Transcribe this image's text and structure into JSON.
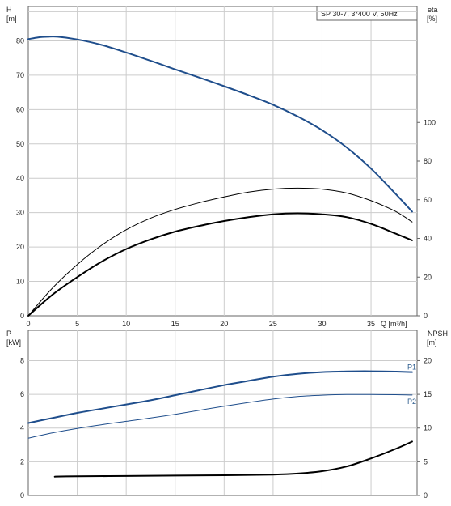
{
  "chart_data": [
    {
      "type": "line",
      "legend": "SP 30-7, 3*400 V, 50Hz",
      "xlabel": "Q [m³/h]",
      "x_ticks": [
        "0",
        "5",
        "10",
        "15",
        "20",
        "25",
        "30",
        "35"
      ],
      "ylabel_left_name": "H",
      "ylabel_left_unit": "[m]",
      "y_left_ticks": [
        "0",
        "10",
        "20",
        "30",
        "40",
        "50",
        "60",
        "70",
        "80"
      ],
      "ylabel_right_name": "eta",
      "ylabel_right_unit": "[%]",
      "y_right_ticks": [
        "0",
        "20",
        "40",
        "60",
        "80",
        "100"
      ],
      "xlim": [
        0,
        39.7
      ],
      "ylim_left": [
        0,
        90
      ],
      "ylim_right": [
        0,
        160
      ],
      "grid": true,
      "colors": {
        "head": "#1f4e8c",
        "efficiency": "#000000",
        "grid": "#cccccc"
      },
      "series": [
        {
          "axis": "left",
          "color": "#1f4e8c",
          "width": 2,
          "x": [
            0,
            1,
            2,
            3,
            5,
            7.5,
            10,
            12.5,
            15,
            17.5,
            20,
            22.5,
            25,
            27.5,
            30,
            32.5,
            35,
            37.5,
            39.2
          ],
          "y": [
            80.5,
            81,
            81.2,
            81.2,
            80.4,
            78.8,
            76.6,
            74.2,
            71.7,
            69.3,
            66.8,
            64.2,
            61.4,
            58.0,
            54.0,
            49.0,
            42.8,
            35.5,
            30.3
          ]
        },
        {
          "axis": "right",
          "color": "#000000",
          "width": 1,
          "x": [
            0,
            2.5,
            5,
            7.5,
            10,
            12.5,
            15,
            17.5,
            20,
            22.5,
            25,
            27.5,
            30,
            32.5,
            35,
            37.5,
            39.2
          ],
          "y": [
            0,
            14.5,
            26.5,
            36.5,
            44.5,
            50.5,
            55.0,
            58.5,
            61.5,
            64.0,
            65.5,
            66.0,
            65.5,
            63.5,
            59.5,
            54.0,
            48.5
          ]
        },
        {
          "axis": "right",
          "color": "#000000",
          "width": 2,
          "x": [
            0,
            2.5,
            5,
            7.5,
            10,
            12.5,
            15,
            17.5,
            20,
            22.5,
            25,
            27.5,
            30,
            32.5,
            35,
            37.5,
            39.2
          ],
          "y": [
            0,
            11.0,
            20.0,
            28.0,
            34.5,
            39.5,
            43.5,
            46.5,
            49.0,
            51.0,
            52.5,
            53.0,
            52.5,
            51.0,
            47.5,
            42.5,
            39.0
          ]
        }
      ]
    },
    {
      "type": "line",
      "ylabel_left_name": "P",
      "ylabel_left_unit": "[kW]",
      "y_left_ticks": [
        "0",
        "2",
        "4",
        "6",
        "8"
      ],
      "ylabel_right_name": "NPSH",
      "ylabel_right_unit": "[m]",
      "y_right_ticks": [
        "0",
        "5",
        "10",
        "15",
        "20"
      ],
      "xlim": [
        0,
        39.7
      ],
      "ylim_left": [
        0,
        9.8
      ],
      "ylim_right": [
        0,
        24.5
      ],
      "grid": true,
      "colors": {
        "p1": "#1f4e8c",
        "p2": "#1f4e8c",
        "npsh": "#000000"
      },
      "series": [
        {
          "name": "P1",
          "axis": "left",
          "color": "#1f4e8c",
          "width": 2,
          "x": [
            0,
            2.5,
            5,
            7.5,
            10,
            12.5,
            15,
            17.5,
            20,
            22.5,
            25,
            27.5,
            30,
            32.5,
            35,
            37.5,
            39.2
          ],
          "y": [
            4.3,
            4.6,
            4.9,
            5.15,
            5.4,
            5.65,
            5.95,
            6.25,
            6.55,
            6.8,
            7.05,
            7.22,
            7.32,
            7.36,
            7.37,
            7.35,
            7.32
          ]
        },
        {
          "name": "P2",
          "axis": "left",
          "color": "#1f4e8c",
          "width": 1,
          "x": [
            0,
            2.5,
            5,
            7.5,
            10,
            12.5,
            15,
            17.5,
            20,
            22.5,
            25,
            27.5,
            30,
            32.5,
            35,
            37.5,
            39.2
          ],
          "y": [
            3.4,
            3.72,
            3.98,
            4.2,
            4.4,
            4.6,
            4.82,
            5.06,
            5.3,
            5.52,
            5.72,
            5.87,
            5.95,
            5.99,
            5.99,
            5.98,
            5.96
          ]
        },
        {
          "axis": "right",
          "color": "#000000",
          "width": 2,
          "x": [
            2.7,
            5,
            10,
            15,
            20,
            25,
            27.5,
            30,
            32.5,
            35,
            37.5,
            39.2
          ],
          "y": [
            2.8,
            2.85,
            2.9,
            2.95,
            3.0,
            3.1,
            3.25,
            3.6,
            4.3,
            5.5,
            6.9,
            8.0
          ]
        }
      ]
    }
  ]
}
